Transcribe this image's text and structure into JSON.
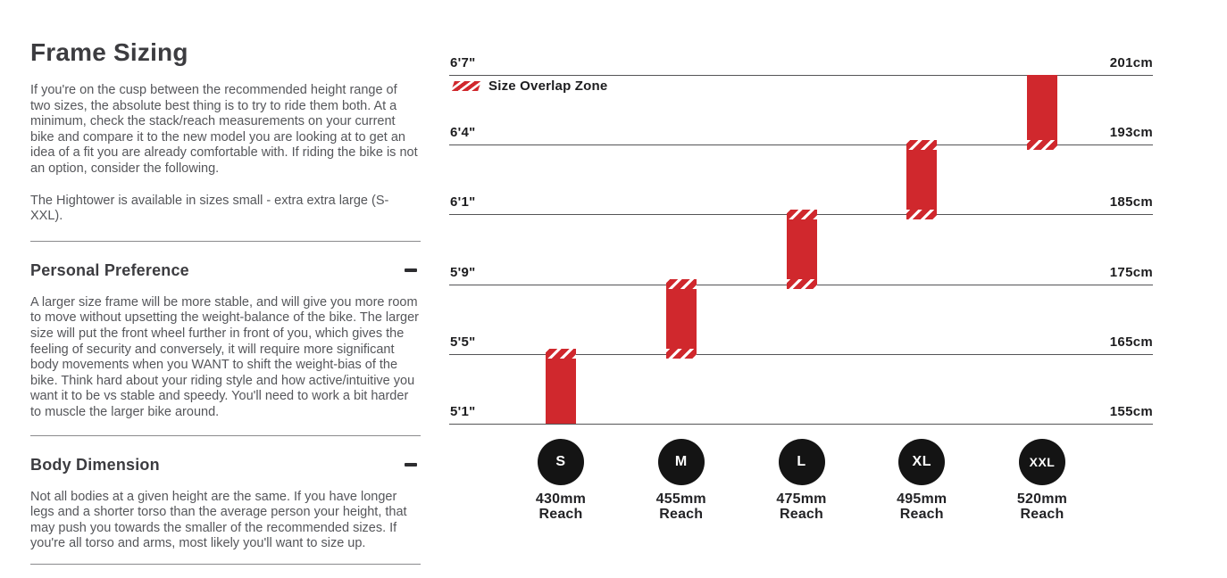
{
  "left_panel": {
    "title": "Frame Sizing",
    "intro": "If you're on the cusp between the recommended height range of two sizes, the absolute best thing is to try to ride them both. At a minimum, check the stack/reach measurements on your current bike and compare it to the new model you are looking at to get an idea of a fit you are already comfortable with. If riding the bike is not an option, consider the following.",
    "availability": "The Hightower is available in sizes small - extra extra large (S-XXL).",
    "sections": [
      {
        "heading": "Personal Preference",
        "collapse_icon": "minus",
        "body": "A larger size frame will be more stable, and will give you more room to move without upsetting the weight-balance of the bike. The larger size will put the front wheel further in front of you, which gives the feeling of security and conversely, it will require more significant body movements when you WANT to shift the weight-bias of the bike. Think hard about your riding style and how active/intuitive you want it to be vs stable and speedy. You'll need to work a bit harder to muscle the larger bike around.",
        "body_dimension_note": ""
      },
      {
        "heading": "Body Dimension",
        "collapse_icon": "minus",
        "body": "Not all bodies at a given height are the same. If you have longer legs and a shorter torso than the average person your height, that may push you towards the smaller of the recommended sizes. If you're all torso and arms, most likely you'll want to size up.",
        "body_dimension_note": ""
      }
    ]
  },
  "chart_data": {
    "type": "bar",
    "title": "",
    "legend_label": "Size Overlap Zone",
    "legend_position": "top-left",
    "orientation": "vertical-range-bars",
    "grid": true,
    "axis": {
      "units": [
        "feet-inches",
        "cm"
      ],
      "left_labels": [
        "6'7\"",
        "6'4\"",
        "6'1\"",
        "5'9\"",
        "5'5\"",
        "5'1\""
      ],
      "right_labels": [
        "201cm",
        "193cm",
        "185cm",
        "175cm",
        "165cm",
        "155cm"
      ],
      "row_values_cm": [
        201,
        193,
        185,
        175,
        165,
        155
      ]
    },
    "bars": [
      {
        "size": "S",
        "reach": "430mm",
        "reach_caption": "Reach",
        "height_range_cm": [
          155,
          165
        ],
        "top_row": 4,
        "bottom_row": 5,
        "overlap_top": true,
        "overlap_bottom": false
      },
      {
        "size": "M",
        "reach": "455mm",
        "reach_caption": "Reach",
        "height_range_cm": [
          165,
          175
        ],
        "top_row": 3,
        "bottom_row": 4,
        "overlap_top": true,
        "overlap_bottom": true
      },
      {
        "size": "L",
        "reach": "475mm",
        "reach_caption": "Reach",
        "height_range_cm": [
          175,
          185
        ],
        "top_row": 2,
        "bottom_row": 3,
        "overlap_top": true,
        "overlap_bottom": true
      },
      {
        "size": "XL",
        "reach": "495mm",
        "reach_caption": "Reach",
        "height_range_cm": [
          185,
          193
        ],
        "top_row": 1,
        "bottom_row": 2,
        "overlap_top": true,
        "overlap_bottom": true
      },
      {
        "size": "XXL",
        "reach": "520mm",
        "reach_caption": "Reach",
        "height_range_cm": [
          193,
          201
        ],
        "top_row": 0,
        "bottom_row": 1,
        "overlap_top": false,
        "overlap_bottom": true
      }
    ],
    "colors": {
      "bar_red": "#d0282d",
      "circle_black": "#141414",
      "gridline": "#545456",
      "label_ink": "#1d1d1f"
    }
  }
}
